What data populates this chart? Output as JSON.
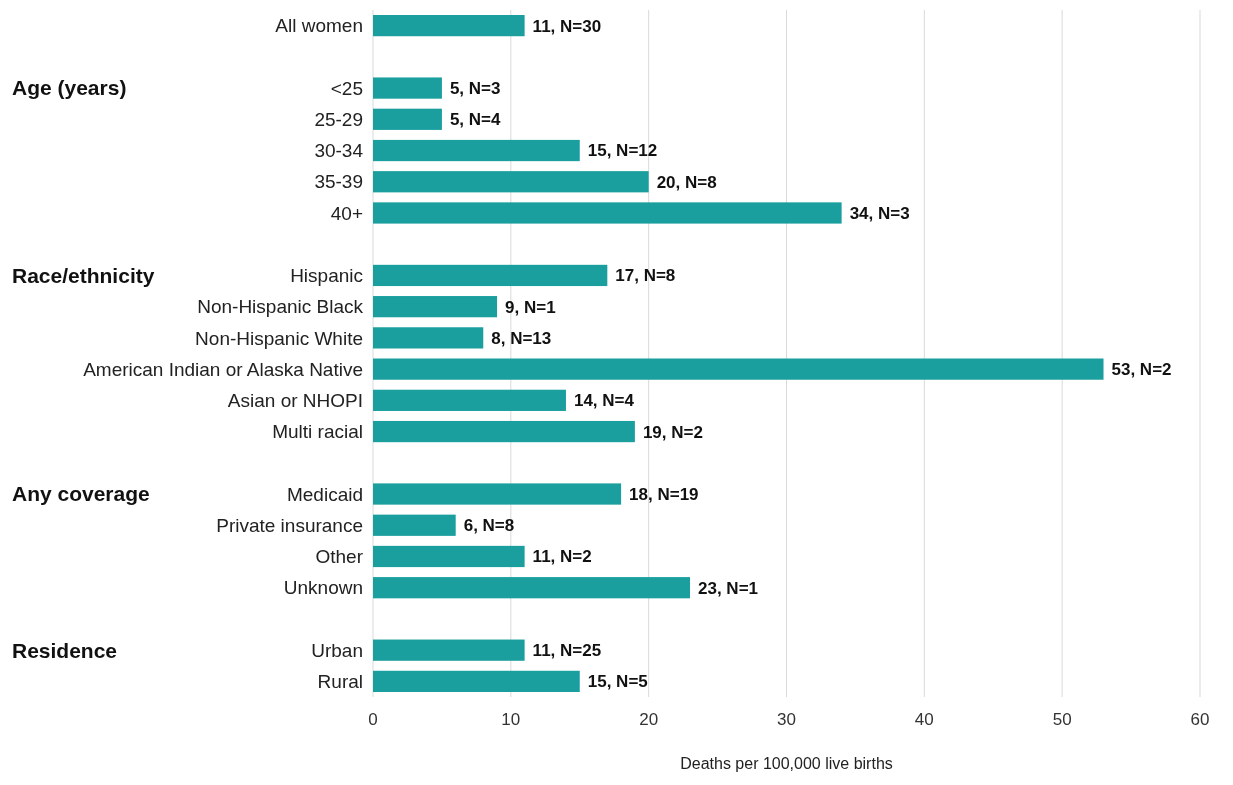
{
  "chart_data": {
    "type": "bar",
    "orientation": "horizontal",
    "xlabel": "Deaths per 100,000 live births",
    "categories": [
      "All women",
      null,
      "<25",
      "25-29",
      "30-34",
      "35-39",
      "40+",
      null,
      "Hispanic",
      "Non-Hispanic Black",
      "Non-Hispanic White",
      "American Indian or Alaska Native",
      "Asian or NHOPI",
      "Multi racial",
      null,
      "Medicaid",
      "Private insurance",
      "Other",
      "Unknown",
      null,
      "Urban",
      "Rural"
    ],
    "values": [
      11,
      null,
      5,
      5,
      15,
      20,
      34,
      null,
      17,
      9,
      8,
      53,
      14,
      19,
      null,
      18,
      6,
      11,
      23,
      null,
      11,
      15
    ],
    "value_labels": [
      "11, N=30",
      null,
      "5, N=3",
      "5, N=4",
      "15, N=12",
      "20, N=8",
      "34, N=3",
      null,
      "17, N=8",
      "9, N=1",
      "8, N=13",
      "53, N=2",
      "14, N=4",
      "19, N=2",
      null,
      "18, N=19",
      "6, N=8",
      "11, N=2",
      "23, N=1",
      null,
      "11, N=25",
      "15, N=5"
    ],
    "color": "#1a9e9e",
    "xlim": [
      0,
      60
    ],
    "xticks": [
      0,
      10,
      20,
      30,
      40,
      50,
      60
    ],
    "grid": "x",
    "annotations": [
      "Age (years)",
      "Race/ethnicity",
      "Any coverage",
      "Residence"
    ]
  }
}
